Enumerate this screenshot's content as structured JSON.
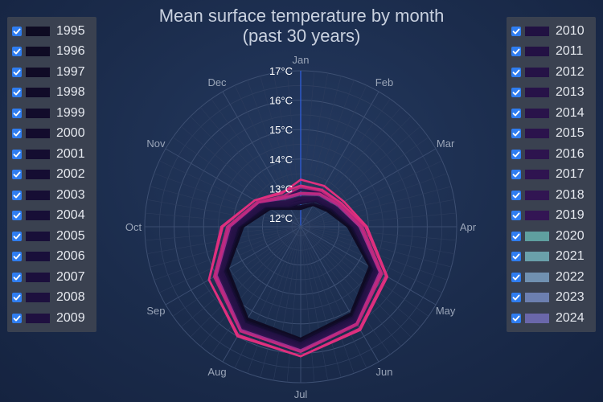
{
  "chart_data": {
    "type": "radar-line",
    "title": "Mean surface temperature by month\n(past 30 years)",
    "categories": [
      "Jan",
      "Feb",
      "Mar",
      "Apr",
      "May",
      "Jun",
      "Jul",
      "Aug",
      "Sep",
      "Oct",
      "Nov",
      "Dec"
    ],
    "radial_axis": {
      "min": 11.7,
      "max": 17.0,
      "ticks": [
        12,
        13,
        14,
        15,
        16,
        17
      ],
      "tick_labels": [
        "12°C",
        "13°C",
        "14°C",
        "15°C",
        "16°C",
        "17°C"
      ]
    },
    "grid": true,
    "series": [
      {
        "name": "1995",
        "color": "#0e0b22",
        "values": [
          12.35,
          12.55,
          12.8,
          13.35,
          14.45,
          15.15,
          15.55,
          15.35,
          14.6,
          13.7,
          12.95,
          12.45
        ]
      },
      {
        "name": "1996",
        "color": "#0f0b24",
        "values": [
          12.3,
          12.55,
          12.75,
          13.3,
          14.4,
          15.1,
          15.5,
          15.3,
          14.55,
          13.65,
          12.9,
          12.4
        ]
      },
      {
        "name": "1997",
        "color": "#100b26",
        "values": [
          12.4,
          12.6,
          12.85,
          13.4,
          14.5,
          15.2,
          15.6,
          15.4,
          14.65,
          13.75,
          13.0,
          12.5
        ]
      },
      {
        "name": "1998",
        "color": "#110b28",
        "values": [
          12.55,
          12.75,
          12.95,
          13.5,
          14.6,
          15.25,
          15.6,
          15.45,
          14.7,
          13.8,
          13.05,
          12.55
        ]
      },
      {
        "name": "1999",
        "color": "#120c2b",
        "values": [
          12.4,
          12.6,
          12.85,
          13.4,
          14.5,
          15.2,
          15.55,
          15.4,
          14.65,
          13.75,
          12.95,
          12.45
        ]
      },
      {
        "name": "2000",
        "color": "#130c2d",
        "values": [
          12.4,
          12.6,
          12.85,
          13.4,
          14.5,
          15.2,
          15.6,
          15.4,
          14.65,
          13.75,
          13.0,
          12.45
        ]
      },
      {
        "name": "2001",
        "color": "#140d30",
        "values": [
          12.5,
          12.7,
          12.9,
          13.45,
          14.55,
          15.25,
          15.65,
          15.45,
          14.7,
          13.8,
          13.05,
          12.5
        ]
      },
      {
        "name": "2002",
        "color": "#150d32",
        "values": [
          12.55,
          12.75,
          12.95,
          13.5,
          14.6,
          15.3,
          15.65,
          15.5,
          14.75,
          13.85,
          13.1,
          12.55
        ]
      },
      {
        "name": "2003",
        "color": "#160e34",
        "values": [
          12.55,
          12.7,
          12.95,
          13.5,
          14.6,
          15.3,
          15.7,
          15.5,
          14.75,
          13.85,
          13.1,
          12.55
        ]
      },
      {
        "name": "2004",
        "color": "#170e36",
        "values": [
          12.5,
          12.7,
          12.9,
          13.45,
          14.55,
          15.25,
          15.65,
          15.45,
          14.7,
          13.8,
          13.05,
          12.5
        ]
      },
      {
        "name": "2005",
        "color": "#180f38",
        "values": [
          12.6,
          12.75,
          13.0,
          13.55,
          14.65,
          15.3,
          15.7,
          15.55,
          14.8,
          13.9,
          13.15,
          12.6
        ]
      },
      {
        "name": "2006",
        "color": "#190f3a",
        "values": [
          12.55,
          12.75,
          12.95,
          13.5,
          14.6,
          15.3,
          15.7,
          15.5,
          14.75,
          13.85,
          13.1,
          12.55
        ]
      },
      {
        "name": "2007",
        "color": "#1b0f3c",
        "values": [
          12.6,
          12.8,
          13.0,
          13.55,
          14.65,
          15.3,
          15.7,
          15.55,
          14.8,
          13.9,
          13.15,
          12.6
        ]
      },
      {
        "name": "2008",
        "color": "#1d103e",
        "values": [
          12.5,
          12.7,
          12.95,
          13.5,
          14.6,
          15.25,
          15.65,
          15.5,
          14.75,
          13.85,
          13.1,
          12.5
        ]
      },
      {
        "name": "2009",
        "color": "#1f1040",
        "values": [
          12.6,
          12.8,
          13.0,
          13.55,
          14.65,
          15.35,
          15.75,
          15.55,
          14.8,
          13.9,
          13.15,
          12.6
        ]
      },
      {
        "name": "2010",
        "color": "#211142",
        "values": [
          12.65,
          12.85,
          13.05,
          13.6,
          14.7,
          15.35,
          15.75,
          15.6,
          14.85,
          13.95,
          13.2,
          12.65
        ]
      },
      {
        "name": "2011",
        "color": "#231144",
        "values": [
          12.55,
          12.75,
          12.95,
          13.5,
          14.6,
          15.3,
          15.7,
          15.5,
          14.75,
          13.85,
          13.1,
          12.55
        ]
      },
      {
        "name": "2012",
        "color": "#251246",
        "values": [
          12.55,
          12.8,
          13.0,
          13.55,
          14.65,
          15.35,
          15.75,
          15.55,
          14.8,
          13.9,
          13.15,
          12.6
        ]
      },
      {
        "name": "2013",
        "color": "#271248",
        "values": [
          12.65,
          12.8,
          13.05,
          13.6,
          14.7,
          15.35,
          15.75,
          15.6,
          14.85,
          13.95,
          13.2,
          12.65
        ]
      },
      {
        "name": "2014",
        "color": "#29134a",
        "values": [
          12.7,
          12.85,
          13.05,
          13.6,
          14.7,
          15.4,
          15.8,
          15.65,
          14.9,
          14.0,
          13.25,
          12.7
        ]
      },
      {
        "name": "2015",
        "color": "#2b134c",
        "values": [
          12.8,
          12.95,
          13.15,
          13.7,
          14.8,
          15.5,
          15.9,
          15.75,
          15.0,
          14.1,
          13.35,
          12.8
        ]
      },
      {
        "name": "2016",
        "color": "#2d144e",
        "values": [
          13.05,
          13.1,
          13.25,
          13.8,
          14.85,
          15.5,
          15.9,
          15.75,
          15.0,
          14.1,
          13.35,
          12.8
        ]
      },
      {
        "name": "2017",
        "color": "#2f1450",
        "values": [
          12.95,
          13.05,
          13.2,
          13.75,
          14.8,
          15.45,
          15.85,
          15.7,
          14.95,
          14.05,
          13.3,
          12.85
        ]
      },
      {
        "name": "2018",
        "color": "#311552",
        "values": [
          12.85,
          12.95,
          13.15,
          13.7,
          14.75,
          15.45,
          15.85,
          15.7,
          14.95,
          14.05,
          13.3,
          12.8
        ]
      },
      {
        "name": "2019",
        "color": "#331554",
        "values": [
          12.95,
          13.05,
          13.2,
          13.75,
          14.85,
          15.55,
          15.95,
          15.8,
          15.05,
          14.15,
          13.4,
          12.9
        ]
      },
      {
        "name": "2020",
        "color": "#5f9f9f",
        "line_color": "#b4287c",
        "values": [
          13.05,
          13.1,
          13.25,
          13.8,
          14.9,
          15.55,
          15.95,
          15.8,
          15.1,
          14.2,
          13.4,
          12.9
        ]
      },
      {
        "name": "2021",
        "color": "#6aa0aa",
        "line_color": "#9e2f8c",
        "values": [
          12.8,
          12.95,
          13.15,
          13.7,
          14.8,
          15.5,
          15.9,
          15.75,
          15.0,
          14.1,
          13.35,
          12.8
        ]
      },
      {
        "name": "2022",
        "color": "#7090b0",
        "line_color": "#c02a80",
        "values": [
          12.85,
          13.0,
          13.2,
          13.75,
          14.85,
          15.5,
          15.95,
          15.8,
          15.05,
          14.15,
          13.35,
          12.85
        ]
      },
      {
        "name": "2023",
        "color": "#6c7fb0",
        "line_color": "#d82c7e",
        "values": [
          13.1,
          13.15,
          13.3,
          13.9,
          15.05,
          15.7,
          16.1,
          15.95,
          15.3,
          14.4,
          13.5,
          13.05
        ]
      },
      {
        "name": "2024",
        "color": "#6a67aa",
        "line_color": "#e0307e",
        "values": [
          13.3,
          13.3,
          13.4,
          13.95,
          15.1,
          15.75,
          16.1,
          16.0,
          15.3,
          14.35,
          13.5,
          13.0
        ]
      }
    ]
  }
}
